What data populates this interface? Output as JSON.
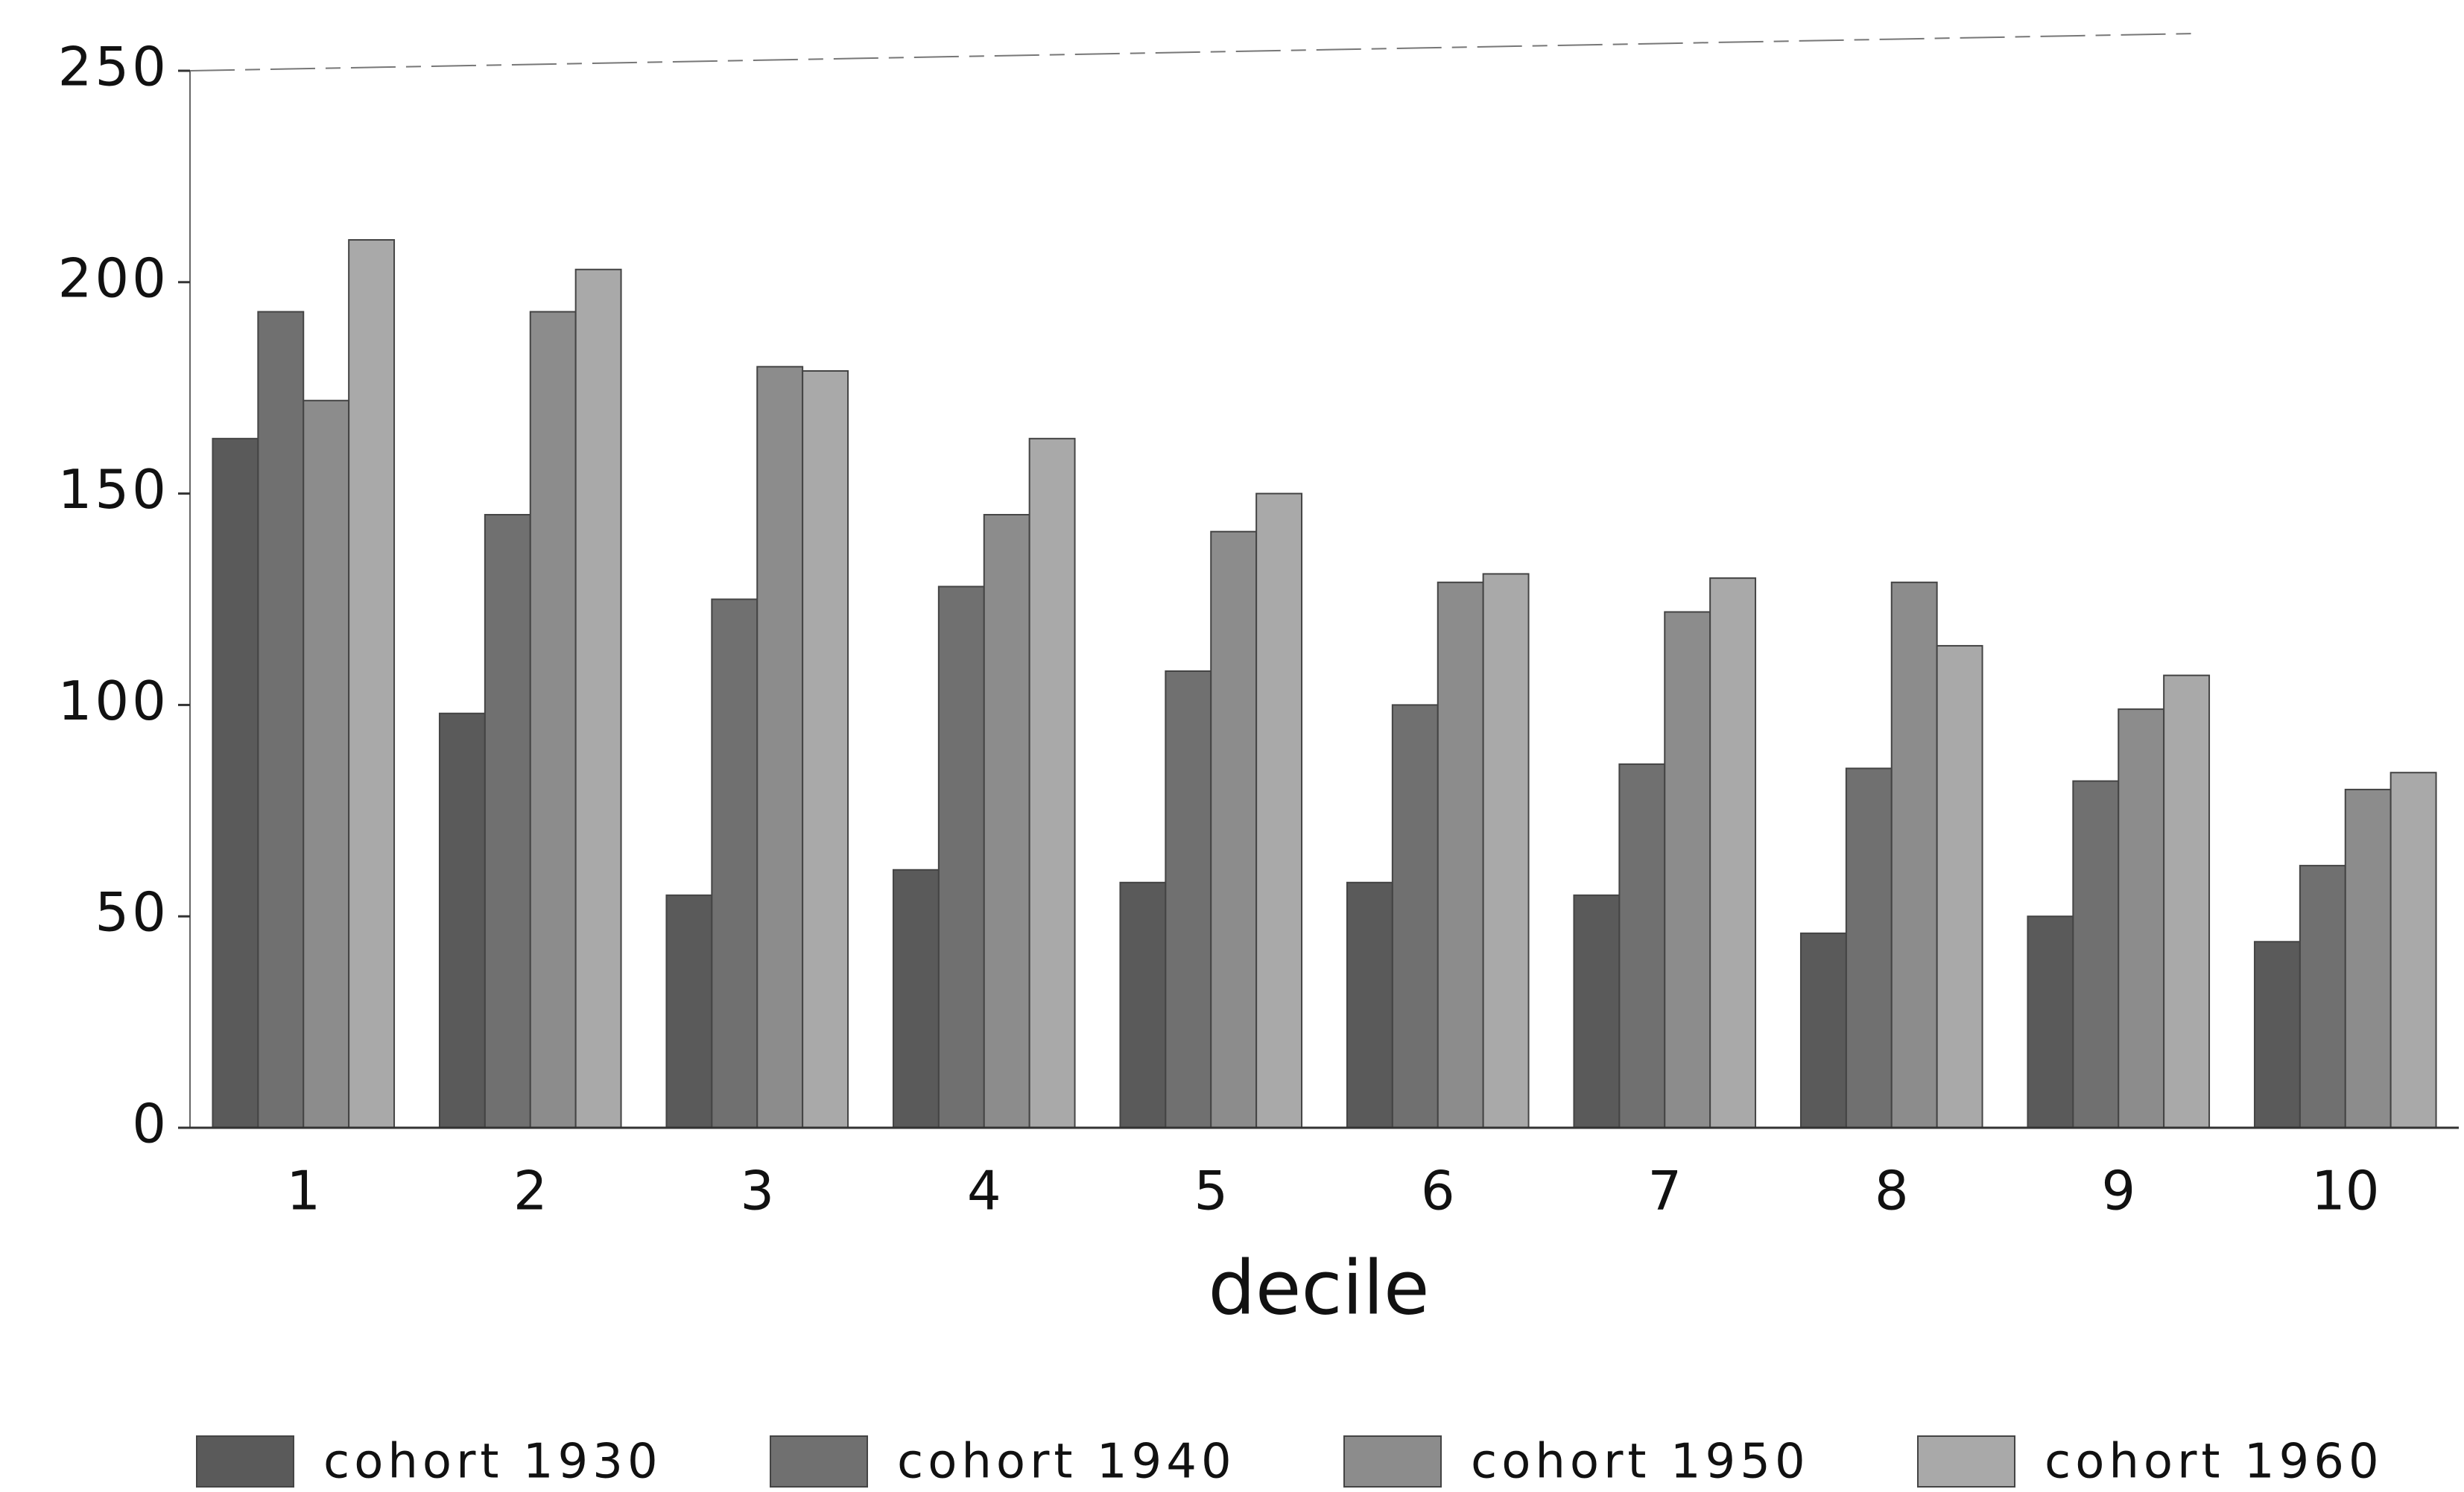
{
  "chart_data": {
    "type": "bar",
    "x_label": "decile",
    "categories": [
      "1",
      "2",
      "3",
      "4",
      "5",
      "6",
      "7",
      "8",
      "9",
      "10"
    ],
    "series": [
      {
        "name": "cohort 1930",
        "color": "#5a5a5a",
        "values": [
          163,
          98,
          55,
          61,
          58,
          58,
          55,
          46,
          50,
          44
        ]
      },
      {
        "name": "cohort 1940",
        "color": "#707070",
        "values": [
          193,
          145,
          125,
          128,
          108,
          100,
          86,
          85,
          82,
          62
        ]
      },
      {
        "name": "cohort 1950",
        "color": "#8c8c8c",
        "values": [
          172,
          193,
          180,
          145,
          141,
          129,
          122,
          129,
          99,
          80
        ]
      },
      {
        "name": "cohort 1960",
        "color": "#a9a9a9",
        "values": [
          210,
          203,
          179,
          163,
          150,
          131,
          130,
          114,
          107,
          84
        ]
      }
    ],
    "ylim": [
      0,
      250
    ],
    "yticks": [
      0,
      50,
      100,
      150,
      200,
      250
    ],
    "legend": "bottom"
  }
}
